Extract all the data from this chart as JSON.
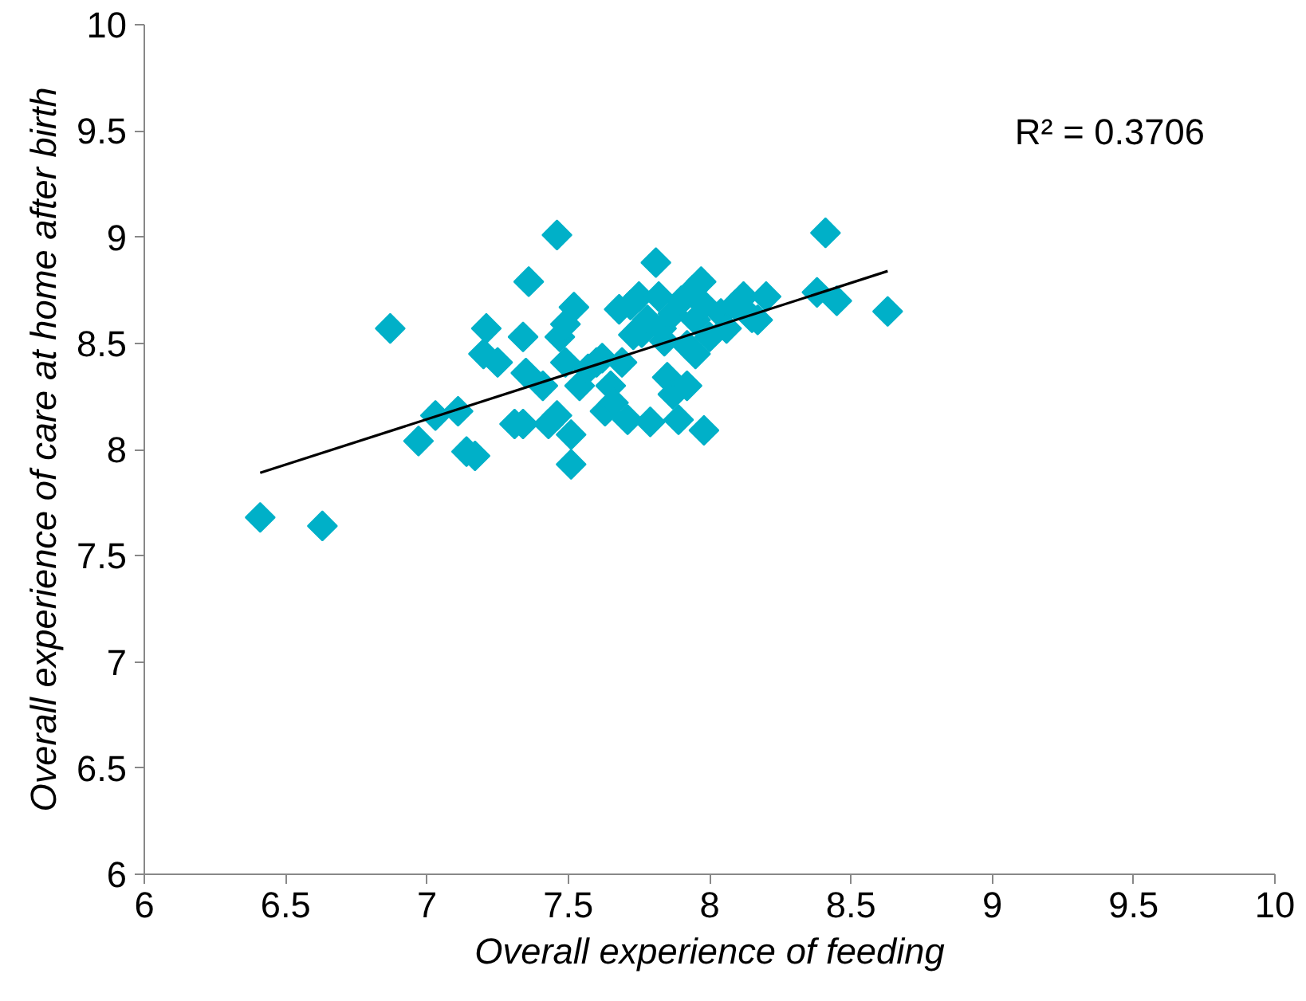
{
  "chart_data": {
    "type": "scatter",
    "xlabel": "Overall experience of feeding",
    "ylabel": "Overall experience of care at home after birth",
    "xlim": [
      6,
      10
    ],
    "ylim": [
      6,
      10
    ],
    "xticks": [
      6,
      {
        "value": 6.5,
        "label": "6.5"
      },
      7,
      {
        "value": 7.5,
        "label": "7.5"
      },
      8,
      {
        "value": 8.5,
        "label": "8.5"
      },
      9,
      {
        "value": 9.5,
        "label": "9.5"
      },
      10
    ],
    "yticks": [
      6,
      {
        "value": 6.5,
        "label": "6.5"
      },
      7,
      {
        "value": 7.5,
        "label": "7.5"
      },
      8,
      {
        "value": 8.5,
        "label": "8.5"
      },
      9,
      {
        "value": 9.5,
        "label": "9.5"
      },
      10
    ],
    "grid": false,
    "annotations": [
      "R² = 0.3706"
    ],
    "series": [
      {
        "color": "#00b0c8",
        "marker": "diamond",
        "x": [
          6.41,
          6.63,
          6.87,
          6.97,
          7.03,
          7.11,
          7.14,
          7.17,
          7.2,
          7.21,
          7.25,
          7.31,
          7.34,
          7.36,
          7.35,
          7.34,
          7.41,
          7.43,
          7.46,
          7.46,
          7.47,
          7.49,
          7.49,
          7.51,
          7.51,
          7.52,
          7.54,
          7.57,
          7.6,
          7.62,
          7.63,
          7.65,
          7.66,
          7.68,
          7.69,
          7.71,
          7.72,
          7.73,
          7.75,
          7.76,
          7.78,
          7.79,
          7.81,
          7.82,
          7.83,
          7.84,
          7.85,
          7.87,
          7.87,
          7.89,
          7.9,
          7.92,
          7.92,
          7.94,
          7.95,
          7.95,
          7.97,
          7.98,
          7.98,
          8.0,
          8.04,
          8.06,
          8.09,
          8.12,
          8.15,
          8.17,
          8.2,
          8.38,
          8.41,
          8.45,
          8.63
        ],
        "values": [
          7.68,
          7.64,
          8.57,
          8.04,
          8.16,
          8.18,
          7.99,
          7.97,
          8.45,
          8.57,
          8.41,
          8.12,
          8.53,
          8.79,
          8.36,
          8.12,
          8.3,
          8.12,
          8.16,
          9.01,
          8.53,
          8.59,
          8.41,
          8.07,
          7.93,
          8.67,
          8.3,
          8.38,
          8.41,
          8.43,
          8.18,
          8.3,
          8.22,
          8.66,
          8.41,
          8.14,
          8.68,
          8.54,
          8.72,
          8.55,
          8.61,
          8.13,
          8.88,
          8.72,
          8.57,
          8.51,
          8.34,
          8.64,
          8.26,
          8.14,
          8.7,
          8.49,
          8.3,
          8.75,
          8.61,
          8.45,
          8.79,
          8.68,
          8.09,
          8.53,
          8.64,
          8.57,
          8.68,
          8.72,
          8.62,
          8.61,
          8.72,
          8.74,
          9.02,
          8.7,
          8.65
        ]
      },
      {
        "type": "line",
        "color": "#000000",
        "line_style": "solid",
        "marker": "none",
        "x": [
          6.41,
          8.63
        ],
        "values": [
          7.89,
          8.84
        ]
      }
    ]
  }
}
